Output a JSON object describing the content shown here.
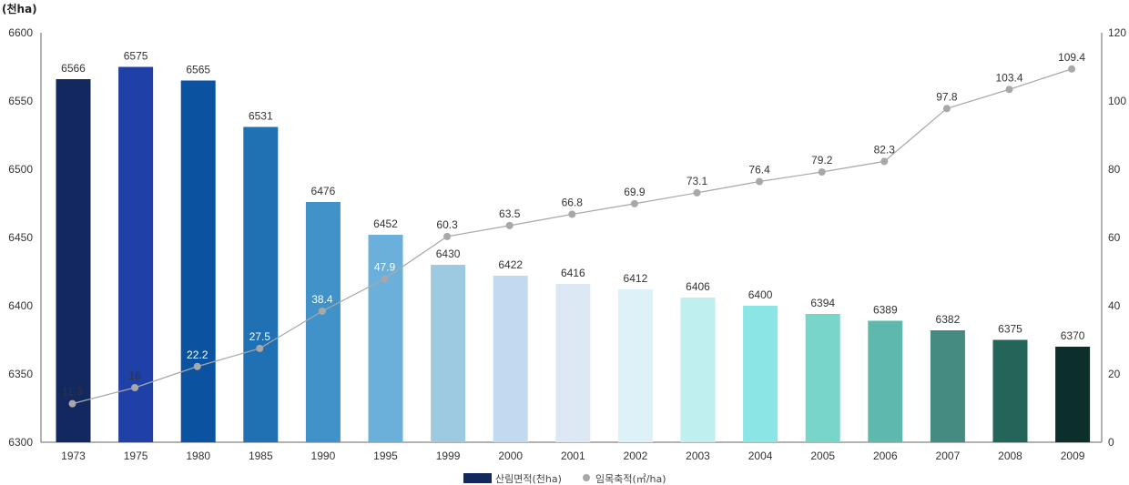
{
  "chart_data": {
    "type": "bar",
    "title": "",
    "y_unit_label": "(천ha)",
    "categories": [
      "1973",
      "1975",
      "1980",
      "1985",
      "1990",
      "1995",
      "1999",
      "2000",
      "2001",
      "2002",
      "2003",
      "2004",
      "2005",
      "2006",
      "2007",
      "2008",
      "2009"
    ],
    "series": [
      {
        "name": "산림면적(천ha)",
        "type": "bar",
        "axis": "left",
        "values": [
          6566,
          6575,
          6565,
          6531,
          6476,
          6452,
          6430,
          6422,
          6416,
          6412,
          6406,
          6400,
          6394,
          6389,
          6382,
          6375,
          6370
        ],
        "colors": [
          "#13285f",
          "#1f40a6",
          "#0b52a0",
          "#2070b4",
          "#4192c8",
          "#6bb0db",
          "#9ecae1",
          "#c2daf0",
          "#dce9f4",
          "#ddf1f8",
          "#bff0ef",
          "#8be5e5",
          "#78d5c9",
          "#5fb8ad",
          "#458b82",
          "#236659",
          "#0c2f2c"
        ]
      },
      {
        "name": "임목축적(㎥/ha)",
        "type": "line",
        "axis": "right",
        "color": "#a8a8a8",
        "values": [
          11.3,
          16,
          22.2,
          27.5,
          38.4,
          47.9,
          60.3,
          63.5,
          66.8,
          69.9,
          73.1,
          76.4,
          79.2,
          82.3,
          97.8,
          103.4,
          109.4
        ]
      }
    ],
    "y_left": {
      "min": 6300,
      "max": 6600,
      "ticks": [
        6300,
        6350,
        6400,
        6450,
        6500,
        6550,
        6600
      ]
    },
    "y_right": {
      "min": 0,
      "max": 120,
      "ticks": [
        0,
        20,
        40,
        60,
        80,
        100,
        120
      ]
    },
    "legend_position": "bottom-center",
    "grid": false
  }
}
